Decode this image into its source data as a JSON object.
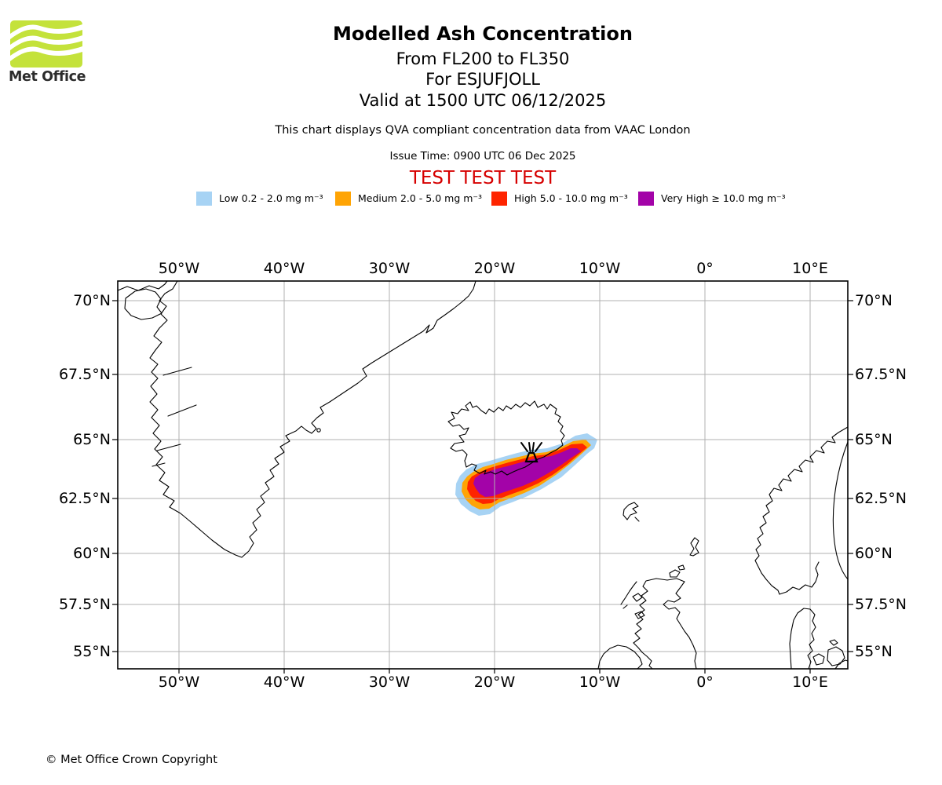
{
  "logo": {
    "brand": "Met Office",
    "green": "#c4e23b"
  },
  "header": {
    "title": "Modelled Ash Concentration",
    "subtitle_lines": [
      "From FL200 to FL350",
      "For ESJUFJOLL",
      "Valid at 1500 UTC 06/12/2025"
    ],
    "description": "This chart displays QVA compliant concentration data from VAAC London",
    "issue_time": "Issue Time: 0900 UTC 06 Dec 2025",
    "test_banner": "TEST TEST TEST",
    "test_banner_color": "#d60000"
  },
  "legend": {
    "items": [
      {
        "label": "Low 0.2 - 2.0 mg m⁻³",
        "color": "#a7d3f4"
      },
      {
        "label": "Medium 2.0 - 5.0 mg m⁻³",
        "color": "#ffa404"
      },
      {
        "label": "High 5.0 - 10.0 mg m⁻³",
        "color": "#fe2400"
      },
      {
        "label": "Very High  ≥  10.0 mg m⁻³",
        "color": "#a303a8"
      }
    ]
  },
  "map": {
    "lon_labels": [
      "50°W",
      "40°W",
      "30°W",
      "20°W",
      "10°W",
      "0°",
      "10°E"
    ],
    "lat_labels": [
      "70°N",
      "67.5°N",
      "65°N",
      "62.5°N",
      "60°N",
      "57.5°N",
      "55°N"
    ],
    "grid_color": "#b0b0b0"
  },
  "footer": {
    "copyright": "© Met Office Crown Copyright"
  }
}
